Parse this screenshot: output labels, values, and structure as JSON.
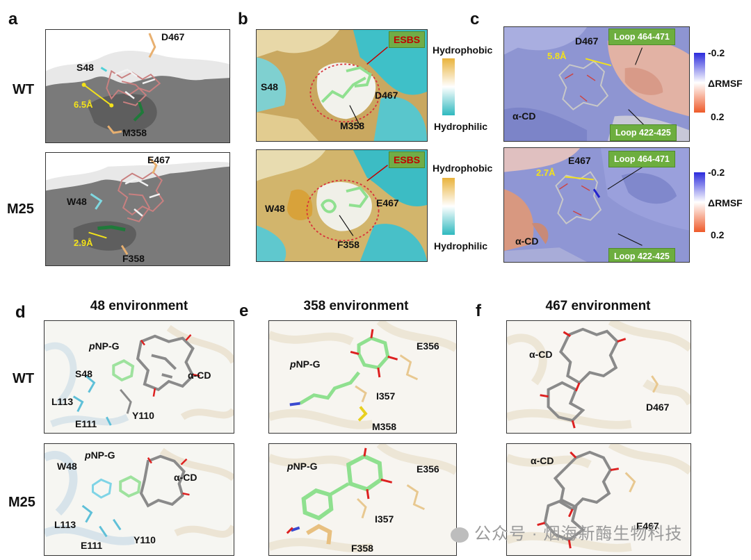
{
  "panels": {
    "a": {
      "letter": "a",
      "row1": "WT",
      "row2": "M25",
      "wt": {
        "d467": "D467",
        "s48": "S48",
        "m358": "M358",
        "dist": "6.5Å"
      },
      "m25": {
        "e467": "E467",
        "w48": "W48",
        "f358": "F358",
        "dist": "2.9Å"
      }
    },
    "b": {
      "letter": "b",
      "wt": {
        "esbs": "ESBS",
        "s48": "S48",
        "d467": "D467",
        "m358": "M358"
      },
      "m25": {
        "esbs": "ESBS",
        "w48": "W48",
        "e467": "E467",
        "f358": "F358"
      },
      "scale_top": "Hydrophobic",
      "scale_bottom": "Hydrophilic"
    },
    "c": {
      "letter": "c",
      "wt": {
        "d467": "D467",
        "dist": "5.8Å",
        "acd": "α-CD",
        "loop1": "Loop 464-471",
        "loop2": "Loop 422-425"
      },
      "m25": {
        "e467": "E467",
        "dist": "2.7Å",
        "acd": "α-CD",
        "loop1": "Loop 464-471",
        "loop2": "Loop 422-425"
      },
      "scale_top": "-0.2",
      "scale_mid": "ΔRMSF",
      "scale_bottom": "0.2"
    },
    "d": {
      "letter": "d",
      "title": "48  environment",
      "row1": "WT",
      "row2": "M25",
      "wt": {
        "pnpg_p": "p",
        "pnpg": "NP-G",
        "s48": "S48",
        "acd": "α-CD",
        "l113": "L113",
        "e111": "E111",
        "y110": "Y110"
      },
      "m25": {
        "pnpg_p": "p",
        "pnpg": "NP-G",
        "w48": "W48",
        "acd": "α-CD",
        "l113": "L113",
        "e111": "E111",
        "y110": "Y110"
      }
    },
    "e": {
      "letter": "e",
      "title": "358  environment",
      "wt": {
        "pnpg_p": "p",
        "pnpg": "NP-G",
        "e356": "E356",
        "i357": "I357",
        "m358": "M358"
      },
      "m25": {
        "pnpg_p": "p",
        "pnpg": "NP-G",
        "e356": "E356",
        "i357": "I357",
        "f358": "F358"
      }
    },
    "f": {
      "letter": "f",
      "title": "467  environment",
      "wt": {
        "acd": "α-CD",
        "d467": "D467"
      },
      "m25": {
        "acd": "α-CD",
        "e467": "E467"
      }
    }
  },
  "watermark": "公众号 · 烟海新酶生物科技",
  "colors": {
    "cyan": "#2bbcc4",
    "gold": "#e8b64a",
    "blue": "#3a3ad0",
    "red": "#e8643a",
    "gray": "#8a8a8a",
    "green": "#6dae3f"
  }
}
